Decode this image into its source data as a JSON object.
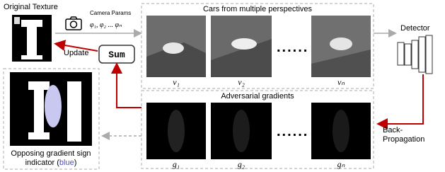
{
  "texture": {
    "title": "Original Texture",
    "update": "Update"
  },
  "camera": {
    "label": "Camera Params",
    "params": "φ₁, φ₂ ... φₙ"
  },
  "sum": "Sum",
  "perspectives": {
    "title": "Cars from multiple perspectives",
    "views": [
      "v₁",
      "v₂",
      "vₙ"
    ]
  },
  "detector": "Detector",
  "gradients": {
    "title": "Adversarial gradients",
    "maps": [
      "g₁",
      "g₂",
      "gₙ"
    ]
  },
  "backprop": [
    "Back-",
    "Propagation"
  ],
  "indicator": {
    "lines": [
      "Opposing gradient sign",
      "indicator (",
      "blue",
      ")"
    ]
  }
}
